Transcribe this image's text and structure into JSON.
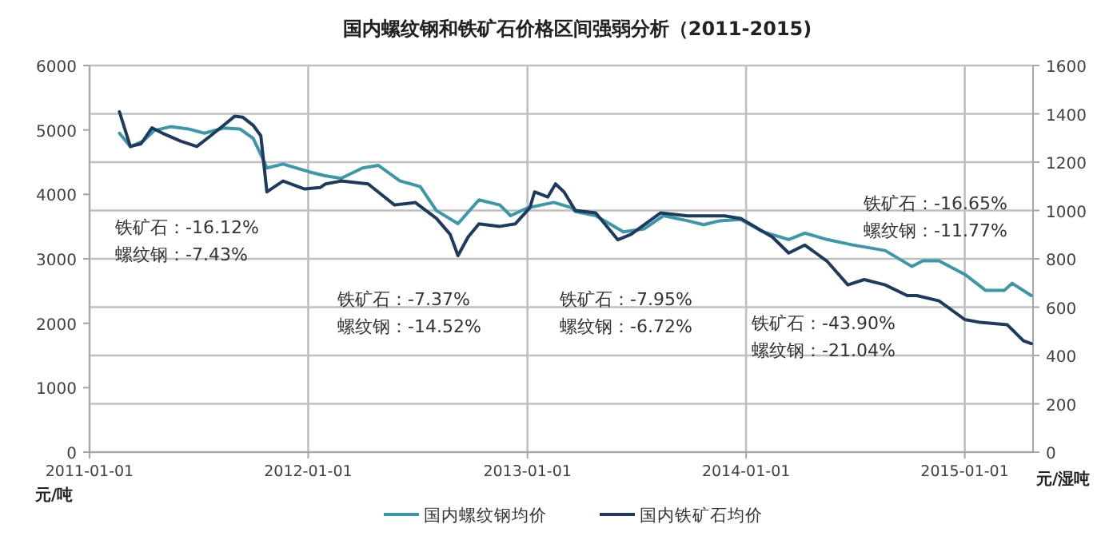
{
  "chart_data": {
    "type": "line",
    "title": "国内螺纹钢和铁矿石价格区间强弱分析（2011-2015)",
    "ylabel": "元/吨",
    "y2label": "元/湿吨",
    "xlim": [
      "2011-01-01",
      "2015-04-25"
    ],
    "xticks": [
      "2011-01-01",
      "2012-01-01",
      "2013-01-01",
      "2014-01-01",
      "2015-01-01"
    ],
    "ylim": [
      0,
      6000
    ],
    "yticks": [
      0,
      1000,
      2000,
      3000,
      4000,
      5000,
      6000
    ],
    "y2lim": [
      0,
      1600
    ],
    "y2ticks": [
      0,
      200,
      400,
      600,
      800,
      1000,
      1200,
      1400,
      1600
    ],
    "grid": true,
    "legend": "bottom",
    "marker": "none",
    "line_style": "solid",
    "series": [
      {
        "name": "国内螺纹钢均价",
        "color": "#3a98a8",
        "x": [
          "2011-02-20",
          "2011-03-10",
          "2011-04-01",
          "2011-04-19",
          "2011-05-16",
          "2011-06-15",
          "2011-07-12",
          "2011-08-13",
          "2011-09-09",
          "2011-10-01",
          "2011-10-14",
          "2011-10-24",
          "2011-11-20",
          "2012-01-03",
          "2012-01-29",
          "2012-02-25",
          "2012-04-01",
          "2012-04-27",
          "2012-06-02",
          "2012-07-06",
          "2012-08-02",
          "2012-09-07",
          "2012-10-12",
          "2012-11-16",
          "2012-12-04",
          "2013-01-01",
          "2013-02-14",
          "2013-03-16",
          "2013-03-22",
          "2013-04-25",
          "2013-06-10",
          "2013-07-15",
          "2013-08-16",
          "2013-09-25",
          "2013-10-22",
          "2013-11-18",
          "2013-12-23",
          "2014-01-29",
          "2014-03-13",
          "2014-04-09",
          "2014-05-16",
          "2014-06-28",
          "2014-08-21",
          "2014-10-05",
          "2014-10-23",
          "2014-11-19",
          "2015-01-01",
          "2015-02-05",
          "2015-03-08",
          "2015-03-21",
          "2015-04-22"
        ],
        "values": [
          4950,
          4740,
          4830,
          4990,
          5050,
          5015,
          4950,
          5030,
          5015,
          4870,
          4620,
          4410,
          4470,
          4350,
          4290,
          4250,
          4410,
          4450,
          4210,
          4120,
          3750,
          3545,
          3915,
          3835,
          3670,
          3790,
          3875,
          3790,
          3735,
          3670,
          3420,
          3465,
          3670,
          3590,
          3530,
          3590,
          3610,
          3420,
          3300,
          3400,
          3300,
          3215,
          3130,
          2880,
          2970,
          2970,
          2760,
          2510,
          2510,
          2620,
          2430
        ]
      },
      {
        "name": "国内铁矿石均价",
        "color": "#1f3a5f",
        "axis": "y2",
        "x": [
          "2011-02-20",
          "2011-03-10",
          "2011-03-28",
          "2011-04-15",
          "2011-05-03",
          "2011-06-02",
          "2011-06-29",
          "2011-07-22",
          "2011-08-13",
          "2011-08-31",
          "2011-09-14",
          "2011-10-01",
          "2011-10-14",
          "2011-10-24",
          "2011-11-20",
          "2011-12-26",
          "2012-01-21",
          "2012-01-30",
          "2012-02-25",
          "2012-04-10",
          "2012-05-24",
          "2012-06-28",
          "2012-08-02",
          "2012-08-25",
          "2012-09-07",
          "2012-09-24",
          "2012-10-12",
          "2012-11-16",
          "2012-12-12",
          "2013-01-05",
          "2013-01-13",
          "2013-02-04",
          "2013-02-17",
          "2013-03-03",
          "2013-03-22",
          "2013-04-25",
          "2013-06-01",
          "2013-06-23",
          "2013-08-11",
          "2013-09-25",
          "2013-11-26",
          "2013-12-23",
          "2014-02-14",
          "2014-03-13",
          "2014-04-09",
          "2014-05-16",
          "2014-06-20",
          "2014-07-17",
          "2014-08-21",
          "2014-09-27",
          "2014-10-13",
          "2014-11-19",
          "2015-01-01",
          "2015-01-27",
          "2015-03-13",
          "2015-04-09",
          "2015-04-22"
        ],
        "values": [
          1408,
          1265,
          1276,
          1342,
          1320,
          1287,
          1265,
          1309,
          1353,
          1390,
          1386,
          1353,
          1309,
          1077,
          1122,
          1089,
          1095,
          1110,
          1122,
          1110,
          1023,
          1033,
          967,
          901,
          813,
          890,
          945,
          934,
          945,
          1011,
          1077,
          1056,
          1110,
          1077,
          1000,
          990,
          879,
          901,
          990,
          978,
          978,
          967,
          890,
          824,
          857,
          791,
          692,
          714,
          692,
          648,
          648,
          626,
          549,
          537,
          527,
          461,
          449
        ]
      }
    ],
    "annotations": [
      "铁矿石：-16.12%\n螺纹钢：-7.43%",
      "铁矿石：-7.37%\n螺纹钢：-14.52%",
      "铁矿石：-7.95%\n螺纹钢：-6.72%",
      "铁矿石：-43.90%\n螺纹钢：-21.04%",
      "铁矿石：-16.65%\n螺纹钢：-11.77%"
    ]
  }
}
